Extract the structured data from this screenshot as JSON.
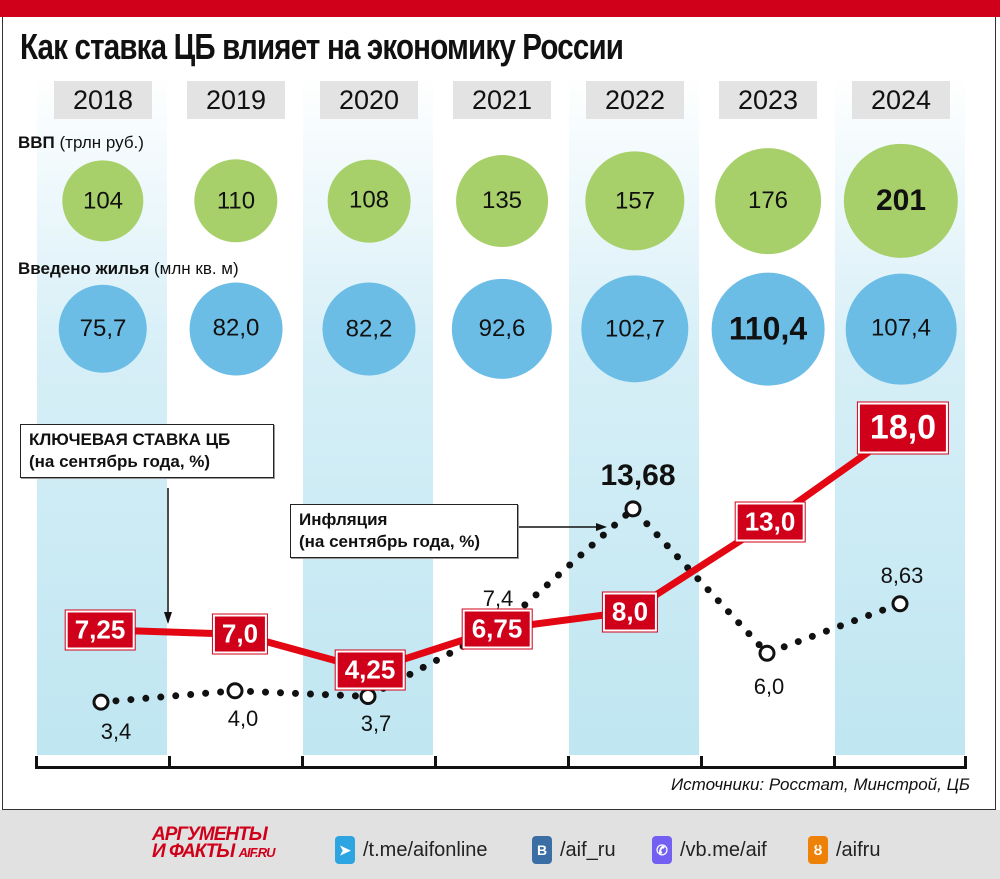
{
  "title": "Как ставка ЦБ влияет на экономику России",
  "gdp_label": "ВВП",
  "gdp_unit": "(трлн руб.)",
  "housing_label": "Введено жилья",
  "housing_unit": "(млн кв. м)",
  "source": "Источники: Росстат, Минстрой, ЦБ",
  "key_rate_note": {
    "line1": "КЛЮЧЕВАЯ СТАВКА ЦБ",
    "line2": "(на сентябрь года, %)"
  },
  "inflation_note": {
    "line1": "Инфляция",
    "line2": "(на сентябрь года, %)"
  },
  "footer": {
    "logo_line1": "АРГУМЕНТЫ",
    "logo_line2": "И ФАКТЫ",
    "logo_site": "AIF.RU",
    "links": [
      {
        "icon": "telegram-icon",
        "text": "/t.me/aifonline",
        "color": "#2ca5e0"
      },
      {
        "icon": "vk-icon",
        "text": "/aif_ru",
        "color": "#3b6ea5"
      },
      {
        "icon": "viber-icon",
        "text": "/vb.me/aif",
        "color": "#7360f2"
      },
      {
        "icon": "ok-icon",
        "text": "/aifru",
        "color": "#ee8208"
      }
    ]
  },
  "chart_data": {
    "type": "line",
    "categories": [
      "2018",
      "2019",
      "2020",
      "2021",
      "2022",
      "2023",
      "2024"
    ],
    "gdp": [
      "104",
      "110",
      "108",
      "135",
      "157",
      "176",
      "201"
    ],
    "housing": [
      "75,7",
      "82,0",
      "82,2",
      "92,6",
      "102,7",
      "110,4",
      "107,4"
    ],
    "series": [
      {
        "name": "Ключевая ставка ЦБ",
        "values": [
          7.25,
          7.0,
          4.25,
          6.75,
          8.0,
          13.0,
          18.0
        ],
        "labels": [
          "7,25",
          "7,0",
          "4,25",
          "6,75",
          "8,0",
          "13,0",
          "18,0"
        ],
        "color": "#e30613"
      },
      {
        "name": "Инфляция",
        "values": [
          3.4,
          4.0,
          3.7,
          7.4,
          13.68,
          6.0,
          8.63
        ],
        "labels": [
          "3,4",
          "4,0",
          "3,7",
          "7,4",
          "13,68",
          "6,0",
          "8,63"
        ],
        "color": "#111111"
      }
    ]
  }
}
